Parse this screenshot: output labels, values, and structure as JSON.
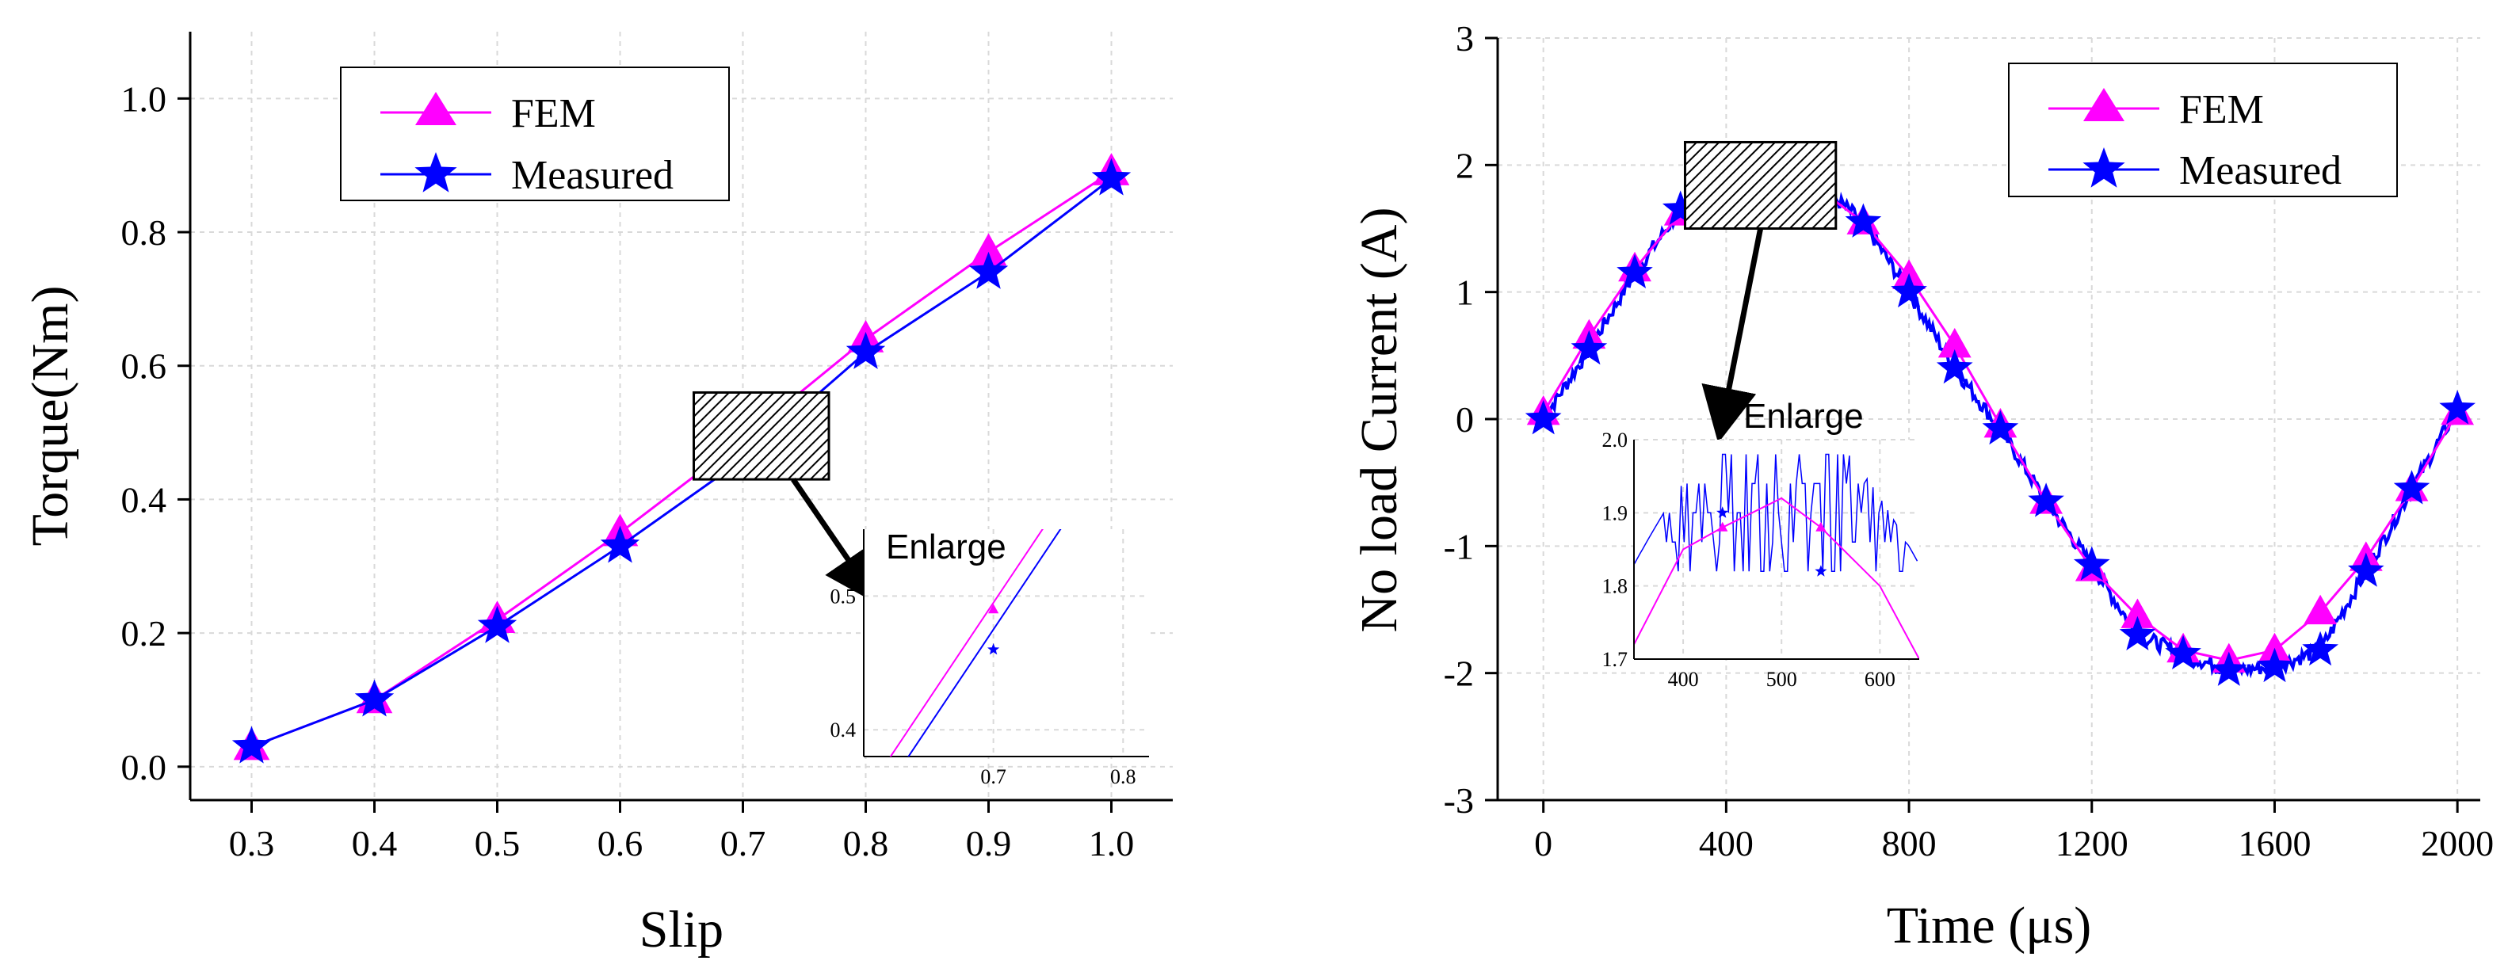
{
  "colors": {
    "fem": "#ff00ff",
    "measured": "#0000ff",
    "axis": "#000000",
    "grid": "#d9d9d9"
  },
  "chart_data": [
    {
      "type": "line",
      "xlabel": "Slip",
      "ylabel": "Torque(Nm)",
      "xlim": [
        0.25,
        1.05
      ],
      "ylim": [
        -0.05,
        1.1
      ],
      "xticks": [
        "0.3",
        "0.4",
        "0.5",
        "0.6",
        "0.7",
        "0.8",
        "0.9",
        "1.0"
      ],
      "yticks": [
        "0.0",
        "0.2",
        "0.4",
        "0.6",
        "0.8",
        "1.0"
      ],
      "legend": [
        "FEM",
        "Measured"
      ],
      "legend_loc": "top-left",
      "grid": true,
      "x": [
        0.3,
        0.4,
        0.5,
        0.6,
        0.7,
        0.8,
        0.9,
        1.0
      ],
      "series": [
        {
          "name": "FEM",
          "marker": "triangle",
          "values": [
            0.03,
            0.1,
            0.22,
            0.35,
            0.49,
            0.64,
            0.77,
            0.89
          ]
        },
        {
          "name": "Measured",
          "marker": "star",
          "values": [
            0.03,
            0.1,
            0.21,
            0.33,
            0.46,
            0.62,
            0.74,
            0.88
          ]
        }
      ],
      "annotation": "Enlarge",
      "highlight_region": {
        "x": [
          0.66,
          0.77
        ],
        "y": [
          0.43,
          0.56
        ]
      },
      "inset": {
        "xlim": [
          0.6,
          0.82
        ],
        "ylim": [
          0.38,
          0.55
        ],
        "xticks": [
          "0.7",
          "0.8"
        ],
        "yticks": [
          "0.4",
          "0.5"
        ],
        "series": [
          {
            "name": "FEM",
            "x": [
              0.6,
              0.8
            ],
            "values": [
              0.35,
              0.64
            ],
            "point": [
              0.7,
              0.49
            ]
          },
          {
            "name": "Measured",
            "x": [
              0.6,
              0.8
            ],
            "values": [
              0.33,
              0.62
            ],
            "point": [
              0.7,
              0.46
            ]
          }
        ]
      }
    },
    {
      "type": "line",
      "xlabel": "Time (μs)",
      "ylabel": "No load Current (A)",
      "xlim": [
        -100,
        2050
      ],
      "ylim": [
        -3,
        3
      ],
      "xticks": [
        "0",
        "400",
        "800",
        "1200",
        "1600",
        "2000"
      ],
      "yticks": [
        "-3",
        "-2",
        "-1",
        "0",
        "1",
        "2",
        "3"
      ],
      "legend": [
        "FEM",
        "Measured"
      ],
      "legend_loc": "top-right",
      "grid": true,
      "series": [
        {
          "name": "FEM",
          "marker": "triangle",
          "x": [
            0,
            100,
            200,
            300,
            400,
            500,
            600,
            700,
            800,
            900,
            1000,
            1100,
            1200,
            1300,
            1400,
            1500,
            1600,
            1700,
            1800,
            1900,
            2000
          ],
          "values": [
            0.05,
            0.65,
            1.18,
            1.62,
            1.88,
            1.93,
            1.82,
            1.55,
            1.12,
            0.58,
            -0.05,
            -0.65,
            -1.18,
            -1.55,
            -1.82,
            -1.9,
            -1.82,
            -1.52,
            -1.1,
            -0.55,
            0.05
          ]
        },
        {
          "name": "Measured",
          "marker": "star",
          "x": [
            0,
            100,
            200,
            300,
            400,
            500,
            600,
            700,
            800,
            900,
            1000,
            1100,
            1200,
            1300,
            1400,
            1500,
            1600,
            1700,
            1800,
            1900,
            2000
          ],
          "values": [
            0.0,
            0.55,
            1.15,
            1.65,
            1.85,
            1.98,
            1.85,
            1.55,
            1.0,
            0.4,
            -0.08,
            -0.65,
            -1.15,
            -1.7,
            -1.85,
            -1.98,
            -1.95,
            -1.82,
            -1.2,
            -0.55,
            0.08
          ]
        }
      ],
      "annotation": "Enlarge",
      "highlight_region": {
        "x": [
          310,
          640
        ],
        "y": [
          1.5,
          2.18
        ]
      },
      "inset": {
        "xlim": [
          350,
          640
        ],
        "ylim": [
          1.7,
          2.0
        ],
        "xticks": [
          "400",
          "500",
          "600"
        ],
        "yticks": [
          "1.7",
          "1.8",
          "1.9",
          "2.0"
        ],
        "fem": {
          "x": [
            350,
            400,
            440,
            500,
            540,
            600,
            640
          ],
          "values": [
            1.72,
            1.85,
            1.88,
            1.92,
            1.88,
            1.8,
            1.7
          ]
        },
        "measured_points": [
          [
            440,
            1.9
          ],
          [
            540,
            1.82
          ]
        ]
      }
    }
  ]
}
